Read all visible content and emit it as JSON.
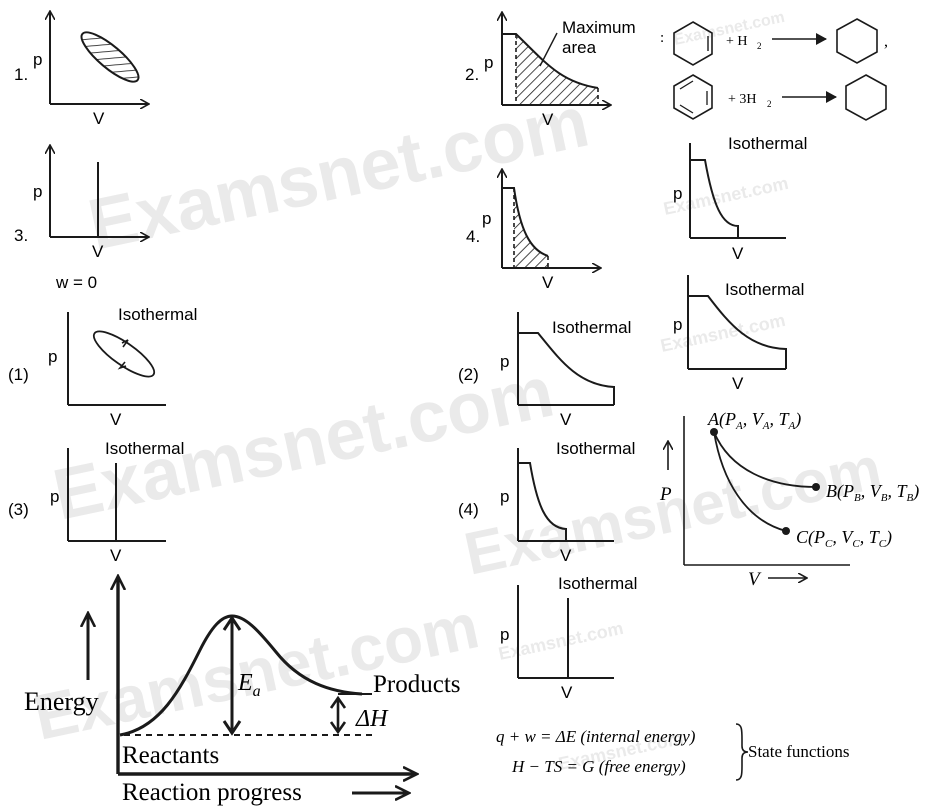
{
  "watermark": "Examsnet.com",
  "labels": {
    "p": "p",
    "v": "V",
    "P": "P",
    "n1": "1.",
    "n2": "2.",
    "n3": "3.",
    "n4": "4.",
    "p1": "(1)",
    "p2": "(2)",
    "p3": "(3)",
    "p4": "(4)",
    "isothermal": "Isothermal",
    "max_area_1": "Maximum",
    "max_area_2": "area",
    "w0": "w = 0"
  },
  "reaction": {
    "colon": ":",
    "plus_h2": "+ H",
    "plus_3h2": "+ 3H",
    "sub2": "2",
    "comma": ","
  },
  "states": {
    "A": "A(P",
    "A_rest": ", V",
    "A_rest2": ", T",
    "A_sub": "A",
    "B": "B(P",
    "B_sub": "B",
    "C": "C(P",
    "C_sub": "C",
    "close": ")",
    "v_arrow_label": "V"
  },
  "energy_diagram": {
    "energy": "Energy",
    "ea": "E",
    "ea_sub": "a",
    "dh": "ΔH",
    "reactants": "Reactants",
    "products": "Products",
    "progress": "Reaction progress"
  },
  "equations": {
    "line1": "q + w = ΔE (internal energy)",
    "line2": "H − TS = G (free energy)",
    "state_functions": "State functions"
  }
}
